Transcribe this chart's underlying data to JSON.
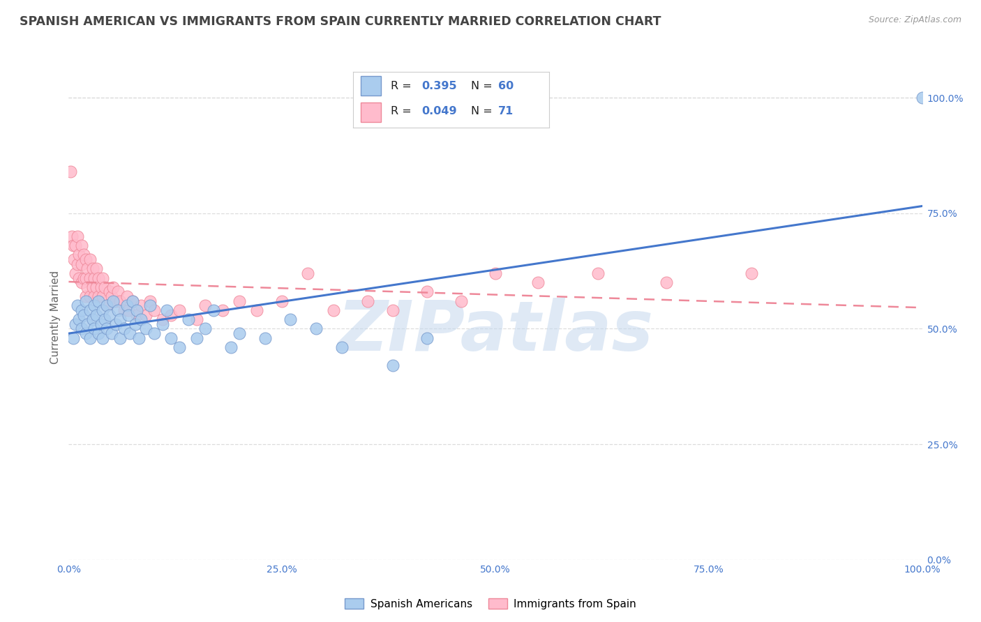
{
  "title": "SPANISH AMERICAN VS IMMIGRANTS FROM SPAIN CURRENTLY MARRIED CORRELATION CHART",
  "source": "Source: ZipAtlas.com",
  "ylabel": "Currently Married",
  "series": [
    {
      "name": "Spanish Americans",
      "color": "#aaccee",
      "edge_color": "#7799cc",
      "R": 0.395,
      "N": 60,
      "line_color": "#4477cc",
      "line_style": "solid",
      "x": [
        0.005,
        0.008,
        0.01,
        0.012,
        0.015,
        0.015,
        0.018,
        0.02,
        0.02,
        0.022,
        0.025,
        0.025,
        0.028,
        0.03,
        0.03,
        0.032,
        0.035,
        0.035,
        0.038,
        0.04,
        0.04,
        0.042,
        0.045,
        0.045,
        0.048,
        0.05,
        0.052,
        0.055,
        0.058,
        0.06,
        0.06,
        0.065,
        0.068,
        0.07,
        0.072,
        0.075,
        0.078,
        0.08,
        0.082,
        0.085,
        0.09,
        0.095,
        0.1,
        0.11,
        0.115,
        0.12,
        0.13,
        0.14,
        0.15,
        0.16,
        0.17,
        0.19,
        0.2,
        0.23,
        0.26,
        0.29,
        0.32,
        0.38,
        0.42,
        1.0
      ],
      "y": [
        0.48,
        0.51,
        0.55,
        0.52,
        0.5,
        0.54,
        0.53,
        0.49,
        0.56,
        0.51,
        0.54,
        0.48,
        0.52,
        0.5,
        0.55,
        0.53,
        0.49,
        0.56,
        0.51,
        0.54,
        0.48,
        0.52,
        0.5,
        0.55,
        0.53,
        0.49,
        0.56,
        0.51,
        0.54,
        0.48,
        0.52,
        0.5,
        0.55,
        0.53,
        0.49,
        0.56,
        0.51,
        0.54,
        0.48,
        0.52,
        0.5,
        0.55,
        0.49,
        0.51,
        0.54,
        0.48,
        0.46,
        0.52,
        0.48,
        0.5,
        0.54,
        0.46,
        0.49,
        0.48,
        0.52,
        0.5,
        0.46,
        0.42,
        0.48,
        1.0
      ]
    },
    {
      "name": "Immigrants from Spain",
      "color": "#ffbbcc",
      "edge_color": "#ee8899",
      "R": 0.049,
      "N": 71,
      "line_color": "#ee8899",
      "line_style": "dashed",
      "x": [
        0.002,
        0.004,
        0.005,
        0.006,
        0.008,
        0.008,
        0.01,
        0.01,
        0.012,
        0.012,
        0.015,
        0.015,
        0.015,
        0.018,
        0.018,
        0.02,
        0.02,
        0.02,
        0.022,
        0.022,
        0.025,
        0.025,
        0.025,
        0.028,
        0.028,
        0.03,
        0.03,
        0.032,
        0.032,
        0.035,
        0.035,
        0.038,
        0.04,
        0.04,
        0.042,
        0.045,
        0.048,
        0.05,
        0.052,
        0.055,
        0.058,
        0.06,
        0.065,
        0.068,
        0.07,
        0.075,
        0.08,
        0.085,
        0.09,
        0.095,
        0.1,
        0.11,
        0.12,
        0.13,
        0.15,
        0.16,
        0.18,
        0.2,
        0.22,
        0.25,
        0.28,
        0.31,
        0.35,
        0.38,
        0.42,
        0.46,
        0.5,
        0.55,
        0.62,
        0.7,
        0.8
      ],
      "y": [
        0.84,
        0.7,
        0.68,
        0.65,
        0.68,
        0.62,
        0.7,
        0.64,
        0.66,
        0.61,
        0.68,
        0.64,
        0.6,
        0.66,
        0.61,
        0.65,
        0.61,
        0.57,
        0.63,
        0.59,
        0.65,
        0.61,
        0.57,
        0.63,
        0.59,
        0.61,
        0.57,
        0.63,
        0.59,
        0.61,
        0.57,
        0.59,
        0.61,
        0.57,
        0.59,
        0.55,
        0.58,
        0.57,
        0.59,
        0.56,
        0.58,
        0.56,
        0.54,
        0.57,
        0.54,
        0.56,
        0.53,
        0.55,
        0.53,
        0.56,
        0.54,
        0.52,
        0.53,
        0.54,
        0.52,
        0.55,
        0.54,
        0.56,
        0.54,
        0.56,
        0.62,
        0.54,
        0.56,
        0.54,
        0.58,
        0.56,
        0.62,
        0.6,
        0.62,
        0.6,
        0.62
      ]
    }
  ],
  "xlim": [
    0.0,
    1.0
  ],
  "ylim": [
    0.0,
    1.05
  ],
  "xticks": [
    0.0,
    0.25,
    0.5,
    0.75,
    1.0
  ],
  "xtick_labels": [
    "0.0%",
    "25.0%",
    "50.0%",
    "75.0%",
    "100.0%"
  ],
  "yticks_right": [
    0.0,
    0.25,
    0.5,
    0.75,
    1.0
  ],
  "ytick_labels_right": [
    "0.0%",
    "25.0%",
    "50.0%",
    "75.0%",
    "100.0%"
  ],
  "grid_color": "#dddddd",
  "background_color": "#ffffff",
  "watermark": "ZIPatlas",
  "watermark_color": "#c5d8ee",
  "title_color": "#444444",
  "title_fontsize": 12.5,
  "accent_color": "#4477cc",
  "legend_box_color": "#4477cc"
}
